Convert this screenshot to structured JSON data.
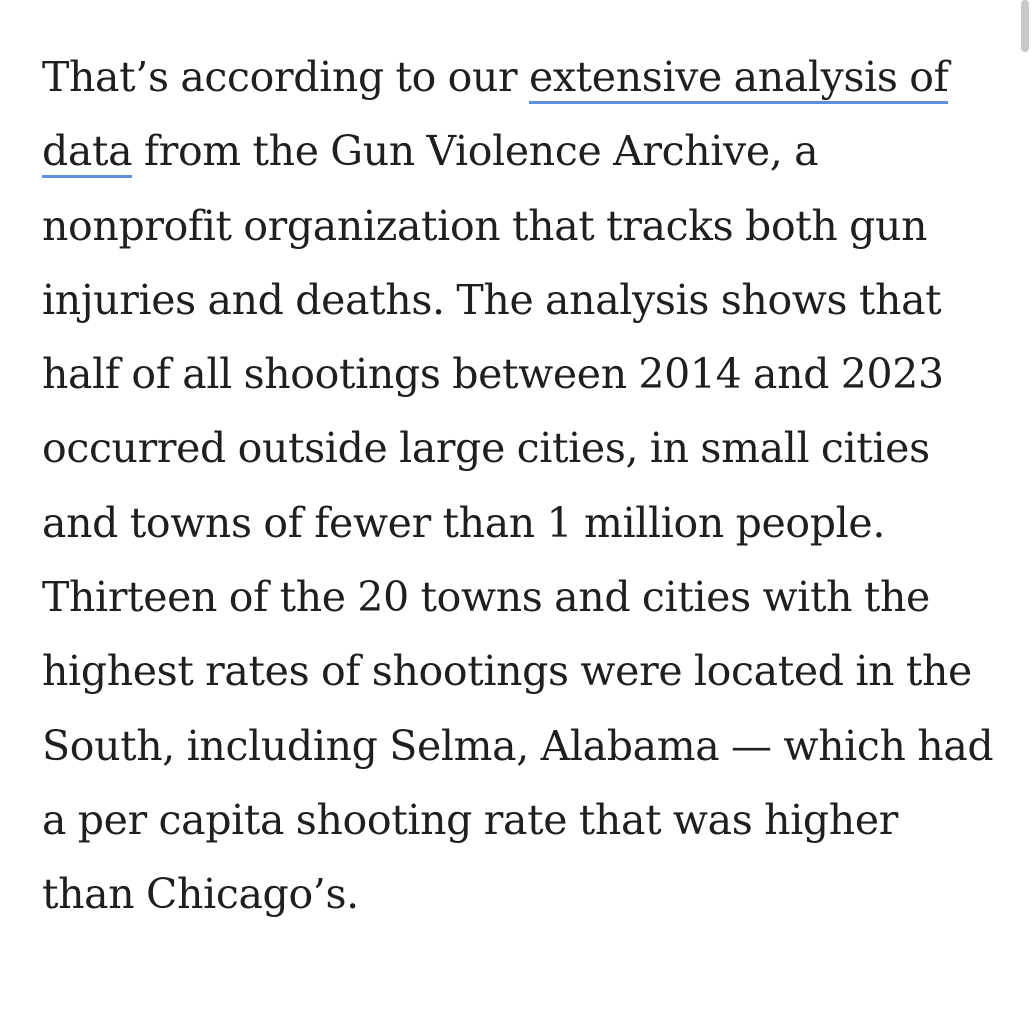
{
  "article": {
    "before_link": "That’s according to our ",
    "link_text": "extensive analysis of data",
    "after_link": " from the Gun Violence Archive, a nonprofit organization that tracks both gun injuries and deaths. The analysis shows that half of all shootings between 2014 and 2023 occurred outside large cities, in small cities and towns of fewer than 1 million people. Thirteen of the 20 towns and cities with the highest rates of shootings were located in the South, including Selma, Alabama — which had a per capita shooting rate that was higher than Chicago’s."
  },
  "colors": {
    "text": "#1f1f1f",
    "link_underline": "#5f8fe0",
    "background": "#ffffff"
  }
}
